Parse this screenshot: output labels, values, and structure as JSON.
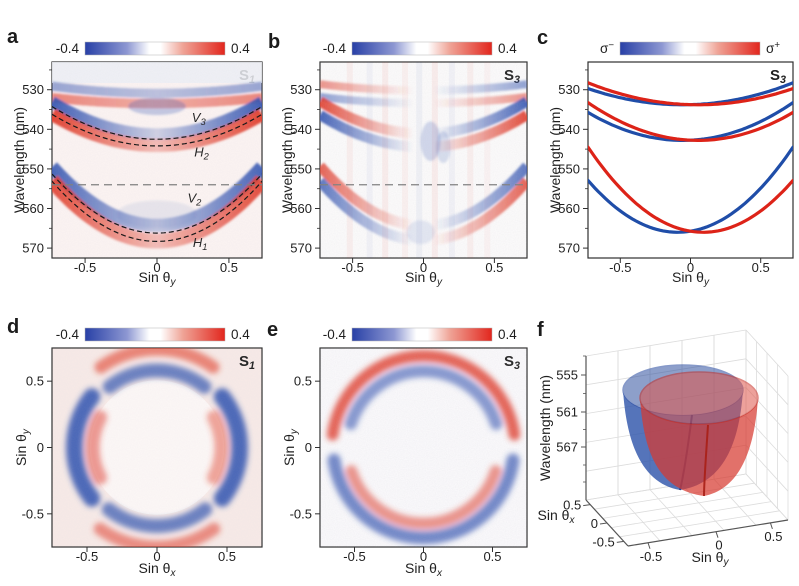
{
  "figure": {
    "panels": [
      {
        "letter": "a"
      },
      {
        "letter": "b"
      },
      {
        "letter": "c"
      },
      {
        "letter": "d"
      },
      {
        "letter": "e"
      },
      {
        "letter": "f"
      }
    ]
  },
  "colors": {
    "negative": "#2840a6",
    "positive": "#e2261d",
    "heat_negative": "#3354b2",
    "heat_positive": "#e23a28",
    "blue_curve": "#1f4da8",
    "red_curve": "#dd2318",
    "dashed_curve": "#111111",
    "dashed_hline": "#7d7d7d",
    "axis_text": "#1f1f1f",
    "frame": "#2f2f2f"
  },
  "chart_data": [
    {
      "id": "a",
      "type": "heatmap-dispersion",
      "stokes_tag": {
        "base": "S",
        "sub": "1"
      },
      "colorbar": {
        "min_label": "-0.4",
        "max_label": "0.4"
      },
      "x_axis": {
        "label": {
          "base": "Sin θ",
          "sub": "y"
        },
        "range": [
          -0.73,
          0.73
        ],
        "ticks": [
          {
            "v": -0.5,
            "t": "-0.5"
          },
          {
            "v": 0,
            "t": "0"
          },
          {
            "v": 0.5,
            "t": "0.5"
          }
        ]
      },
      "y_axis": {
        "label": "Wavelength (nm)",
        "range": [
          523,
          572.5
        ],
        "ticks": [
          {
            "v": 530,
            "t": "530"
          },
          {
            "v": 540,
            "t": "540"
          },
          {
            "v": 550,
            "t": "550"
          },
          {
            "v": 560,
            "t": "560"
          },
          {
            "v": 570,
            "t": "570"
          }
        ],
        "minor": [
          525,
          535,
          545,
          555,
          565
        ]
      },
      "background": "#fcf4f3",
      "top_tint": {
        "to_nm": 528.3,
        "color": "#edf0f6"
      },
      "hline_nm": 554,
      "dashed_modes": [
        {
          "name": "V3",
          "label": {
            "base": "V",
            "sub": "3"
          },
          "vertex_nm": 542.5,
          "curvature": 15.5,
          "x0": 0,
          "label_at": {
            "x": 0.29,
            "nm": 538.2
          }
        },
        {
          "name": "H2",
          "label": {
            "base": "H",
            "sub": "2"
          },
          "vertex_nm": 544.2,
          "curvature": 15.0,
          "x0": 0,
          "label_at": {
            "x": 0.31,
            "nm": 546.9
          }
        },
        {
          "name": "V2",
          "label": {
            "base": "V",
            "sub": "2"
          },
          "vertex_nm": 566.2,
          "curvature": 28.0,
          "x0": 0,
          "label_at": {
            "x": 0.26,
            "nm": 558.5
          }
        },
        {
          "name": "H1",
          "label": {
            "base": "H",
            "sub": "1"
          },
          "vertex_nm": 568.3,
          "curvature": 28.5,
          "x0": 0,
          "label_at": {
            "x": 0.3,
            "nm": 569.7
          }
        }
      ],
      "signal_bands": [
        {
          "polarity": "negative",
          "vertex_nm": 530.9,
          "curvature": 3.4,
          "x0": 0,
          "width_nm": 2.3,
          "edge_opacity": 0.5,
          "center_opacity": 0.32
        },
        {
          "polarity": "positive",
          "vertex_nm": 533.5,
          "curvature": 2.8,
          "x0": 0,
          "width_nm": 2.4,
          "edge_opacity": 0.6,
          "center_opacity": 0.38
        },
        {
          "polarity": "negative",
          "vertex_nm": 541.2,
          "curvature": 15.3,
          "x0": 0,
          "width_nm": 2.9,
          "edge_opacity": 0.95,
          "center_opacity": 0.22
        },
        {
          "polarity": "positive",
          "vertex_nm": 544.1,
          "curvature": 14.8,
          "x0": 0,
          "width_nm": 3.3,
          "edge_opacity": 0.95,
          "center_opacity": 0.3
        },
        {
          "polarity": "negative",
          "vertex_nm": 564.3,
          "curvature": 27.8,
          "x0": 0,
          "width_nm": 3.4,
          "edge_opacity": 0.9,
          "center_opacity": 0.28
        },
        {
          "polarity": "positive",
          "vertex_nm": 568.2,
          "curvature": 28.6,
          "x0": 0,
          "width_nm": 3.8,
          "edge_opacity": 0.9,
          "center_opacity": 0.3
        }
      ],
      "soft_blobs": [
        {
          "x": 0.0,
          "nm": 534.2,
          "rx": 0.2,
          "ry_nm": 2.2,
          "polarity": "negative",
          "opacity": 0.28
        },
        {
          "x": 0.0,
          "nm": 561.5,
          "rx": 0.28,
          "ry_nm": 3.5,
          "polarity": "negative",
          "opacity": 0.1
        }
      ],
      "noise": {
        "seed": 3,
        "opacity": 0.1
      }
    },
    {
      "id": "b",
      "type": "heatmap-dispersion-antisym",
      "stokes_tag": {
        "base": "S",
        "sub": "3"
      },
      "colorbar": {
        "min_label": "-0.4",
        "max_label": "0.4"
      },
      "x_axis": {
        "label": {
          "base": "Sin θ",
          "sub": "y"
        },
        "range": [
          -0.73,
          0.73
        ],
        "ticks": [
          {
            "v": -0.5,
            "t": "-0.5"
          },
          {
            "v": 0,
            "t": "0"
          },
          {
            "v": 0.5,
            "t": "0.5"
          }
        ]
      },
      "y_axis": {
        "label": "Wavelength (nm)",
        "range": [
          523,
          572.5
        ],
        "ticks": [
          {
            "v": 530,
            "t": "530"
          },
          {
            "v": 540,
            "t": "540"
          },
          {
            "v": 550,
            "t": "550"
          },
          {
            "v": 560,
            "t": "560"
          },
          {
            "v": 570,
            "t": "570"
          }
        ],
        "minor": [
          525,
          535,
          545,
          555,
          565
        ]
      },
      "background": "#fdfcfc",
      "hline_nm": 554,
      "antisym_bands": [
        {
          "vertex_nm": 531.8,
          "curvature": 3.0,
          "x0": 0,
          "split_nm": 1.6,
          "width_nm": 2.0,
          "edge_opacity": 0.55
        },
        {
          "vertex_nm": 542.8,
          "curvature": 15.3,
          "x0": 0,
          "split_nm": 1.7,
          "width_nm": 2.6,
          "edge_opacity": 0.92
        },
        {
          "vertex_nm": 566.2,
          "curvature": 28.2,
          "x0": 0,
          "split_nm": 1.9,
          "width_nm": 2.6,
          "edge_opacity": 0.8
        }
      ],
      "vertical_stripes": [
        {
          "x": -0.52,
          "polarity": "positive",
          "opacity": 0.06
        },
        {
          "x": -0.38,
          "polarity": "negative",
          "opacity": 0.05
        },
        {
          "x": -0.27,
          "polarity": "positive",
          "opacity": 0.07
        },
        {
          "x": -0.13,
          "polarity": "positive",
          "opacity": 0.05
        },
        {
          "x": -0.03,
          "polarity": "negative",
          "opacity": 0.06
        },
        {
          "x": 0.08,
          "polarity": "positive",
          "opacity": 0.07
        },
        {
          "x": 0.2,
          "polarity": "negative",
          "opacity": 0.05
        },
        {
          "x": 0.33,
          "polarity": "positive",
          "opacity": 0.06
        },
        {
          "x": 0.45,
          "polarity": "positive",
          "opacity": 0.04
        }
      ],
      "center_smudges": [
        {
          "x": 0.05,
          "nm": 543.0,
          "w": 0.07,
          "h_nm": 5,
          "polarity": "negative",
          "opacity": 0.22
        },
        {
          "x": 0.14,
          "nm": 544.5,
          "w": 0.05,
          "h_nm": 4,
          "polarity": "negative",
          "opacity": 0.18
        },
        {
          "x": -0.02,
          "nm": 566.0,
          "w": 0.1,
          "h_nm": 3,
          "polarity": "negative",
          "opacity": 0.12
        }
      ],
      "noise": {
        "seed": 7,
        "opacity": 0.16
      }
    },
    {
      "id": "c",
      "type": "line-dispersion",
      "stokes_tag": {
        "base": "S",
        "sub": "3"
      },
      "colorbar": {
        "min_label": {
          "base": "σ",
          "sup": "−"
        },
        "max_label": {
          "base": "σ",
          "sup": "+"
        }
      },
      "x_axis": {
        "label": {
          "base": "Sin θ",
          "sub": "y"
        },
        "range": [
          -0.73,
          0.73
        ],
        "ticks": [
          {
            "v": -0.5,
            "t": "-0.5"
          },
          {
            "v": 0,
            "t": "0"
          },
          {
            "v": 0.5,
            "t": "0.5"
          }
        ]
      },
      "y_axis": {
        "label": "Wavelength (nm)",
        "range": [
          523,
          572.5
        ],
        "ticks": [
          {
            "v": 530,
            "t": "530"
          },
          {
            "v": 540,
            "t": "540"
          },
          {
            "v": 550,
            "t": "550"
          },
          {
            "v": 560,
            "t": "560"
          },
          {
            "v": 570,
            "t": "570"
          }
        ],
        "minor": [
          525,
          535,
          545,
          555,
          565
        ]
      },
      "background": "#ffffff",
      "series": [
        {
          "name": "sigma-minus upper branch",
          "color_key": "blue_curve",
          "vertex_nm": 533.8,
          "x0": -0.055,
          "curvature": 9.0
        },
        {
          "name": "sigma-plus upper branch",
          "color_key": "red_curve",
          "vertex_nm": 533.8,
          "x0": 0.055,
          "curvature": 9.0
        },
        {
          "name": "sigma-minus middle branch",
          "color_key": "blue_curve",
          "vertex_nm": 542.8,
          "x0": -0.055,
          "curvature": 15.5
        },
        {
          "name": "sigma-plus middle branch",
          "color_key": "red_curve",
          "vertex_nm": 542.8,
          "x0": 0.055,
          "curvature": 15.5
        },
        {
          "name": "sigma-minus lower branch",
          "color_key": "blue_curve",
          "vertex_nm": 566.0,
          "x0": -0.09,
          "curvature": 32.0
        },
        {
          "name": "sigma-plus lower branch",
          "color_key": "red_curve",
          "vertex_nm": 566.0,
          "x0": 0.09,
          "curvature": 32.0
        }
      ],
      "line_width": 3.2
    },
    {
      "id": "d",
      "type": "heatmap-kspace",
      "stokes_tag": {
        "base": "S",
        "sub": "1"
      },
      "colorbar": {
        "min_label": "-0.4",
        "max_label": "0.4"
      },
      "x_axis": {
        "label": {
          "base": "Sin θ",
          "sub": "x"
        },
        "range": [
          -0.75,
          0.75
        ],
        "ticks": [
          {
            "v": -0.5,
            "t": "-0.5"
          },
          {
            "v": 0,
            "t": "0"
          },
          {
            "v": 0.5,
            "t": "0.5"
          }
        ]
      },
      "y_axis": {
        "label": {
          "base": "Sin θ",
          "sub": "y"
        },
        "range": [
          -0.75,
          0.75
        ],
        "ticks": [
          {
            "v": -0.5,
            "t": "-0.5"
          },
          {
            "v": 0,
            "t": "0"
          },
          {
            "v": 0.5,
            "t": "0.5"
          }
        ]
      },
      "background": "#f8ebe8",
      "inner_disc": {
        "radius": 0.48,
        "color": "#fdf8f7"
      },
      "arcs": [
        {
          "polarity": "negative",
          "radius": 0.59,
          "width": 0.12,
          "start_deg": -38,
          "end_deg": 38,
          "opacity": 0.88
        },
        {
          "polarity": "negative",
          "radius": 0.55,
          "width": 0.1,
          "start_deg": 52,
          "end_deg": 128,
          "opacity": 0.72
        },
        {
          "polarity": "negative",
          "radius": 0.59,
          "width": 0.12,
          "start_deg": 142,
          "end_deg": 218,
          "opacity": 0.88
        },
        {
          "polarity": "negative",
          "radius": 0.56,
          "width": 0.1,
          "start_deg": 232,
          "end_deg": 308,
          "opacity": 0.72
        },
        {
          "polarity": "positive",
          "radius": 0.7,
          "width": 0.09,
          "start_deg": 55,
          "end_deg": 125,
          "opacity": 0.6
        },
        {
          "polarity": "positive",
          "radius": 0.71,
          "width": 0.09,
          "start_deg": 235,
          "end_deg": 305,
          "opacity": 0.55
        },
        {
          "polarity": "positive",
          "radius": 0.46,
          "width": 0.1,
          "start_deg": 152,
          "end_deg": 208,
          "opacity": 0.5
        },
        {
          "polarity": "positive",
          "radius": 0.46,
          "width": 0.1,
          "start_deg": -28,
          "end_deg": 28,
          "opacity": 0.45
        }
      ],
      "noise": {
        "seed": 11,
        "opacity": 0.1
      }
    },
    {
      "id": "e",
      "type": "heatmap-kspace",
      "stokes_tag": {
        "base": "S",
        "sub": "3"
      },
      "colorbar": {
        "min_label": "-0.4",
        "max_label": "0.4"
      },
      "x_axis": {
        "label": {
          "base": "Sin θ",
          "sub": "x"
        },
        "range": [
          -0.75,
          0.75
        ],
        "ticks": [
          {
            "v": -0.5,
            "t": "-0.5"
          },
          {
            "v": 0,
            "t": "0"
          },
          {
            "v": 0.5,
            "t": "0.5"
          }
        ]
      },
      "y_axis": {
        "label": {
          "base": "Sin θ",
          "sub": "y"
        },
        "range": [
          -0.75,
          0.75
        ],
        "ticks": [
          {
            "v": -0.5,
            "t": "-0.5"
          },
          {
            "v": 0,
            "t": "0"
          },
          {
            "v": 0.5,
            "t": "0.5"
          }
        ]
      },
      "background": "#fcfbfd",
      "arcs": [
        {
          "polarity": "positive",
          "radius": 0.665,
          "width": 0.085,
          "start_deg": 8,
          "end_deg": 172,
          "opacity": 0.8
        },
        {
          "polarity": "negative",
          "radius": 0.555,
          "width": 0.09,
          "start_deg": 18,
          "end_deg": 162,
          "opacity": 0.6
        },
        {
          "polarity": "negative",
          "radius": 0.655,
          "width": 0.095,
          "start_deg": 188,
          "end_deg": 352,
          "opacity": 0.7
        },
        {
          "polarity": "positive",
          "radius": 0.55,
          "width": 0.085,
          "start_deg": 198,
          "end_deg": 342,
          "opacity": 0.55
        }
      ],
      "noise": {
        "seed": 15,
        "opacity": 0.18
      }
    },
    {
      "id": "f",
      "type": "surface-3d",
      "z_axis": {
        "label": "Wavelength (nm)",
        "ticks": [
          {
            "t": "555"
          },
          {
            "t": "561"
          },
          {
            "t": "567"
          }
        ]
      },
      "x_axis": {
        "label": {
          "base": "Sin θ",
          "sub": "x"
        },
        "ticks": [
          {
            "t": "0.5"
          },
          {
            "t": "0"
          },
          {
            "t": "-0.5"
          }
        ]
      },
      "y_axis": {
        "label": {
          "base": "Sin θ",
          "sub": "y"
        },
        "ticks": [
          {
            "t": "-0.5"
          },
          {
            "t": "0"
          },
          {
            "t": "0.5"
          }
        ]
      },
      "surfaces": [
        {
          "name": "sigma-minus paraboloid",
          "color_key": "blue_curve",
          "shift_sin_theta_y": -0.09,
          "vertex_nm": 566
        },
        {
          "name": "sigma-plus paraboloid",
          "color_key": "red_curve",
          "shift_sin_theta_y": 0.09,
          "vertex_nm": 566
        }
      ]
    }
  ]
}
